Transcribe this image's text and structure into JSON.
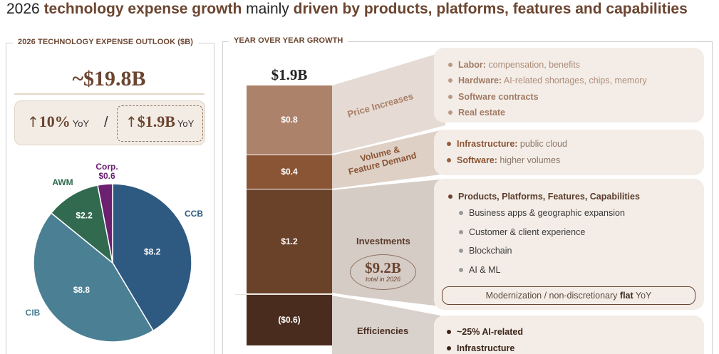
{
  "title": {
    "p1": "2026 ",
    "p2": "technology expense growth",
    "p3": " mainly ",
    "p4": "driven by products, platforms, features and capabilities"
  },
  "left_panel": {
    "label": "2026 TECHNOLOGY EXPENSE OUTLOOK ($B)",
    "total": "~$19.8B",
    "yoy_pct": "10%",
    "yoy_pct_unit": "YoY",
    "separator": "/",
    "yoy_abs": "$1.9B",
    "yoy_abs_unit": "YoY",
    "up_arrow": "↑"
  },
  "right_panel": {
    "label": "YEAR OVER YEAR GROWTH",
    "bar_total": "$1.9B",
    "bands": {
      "price": "Price Increases",
      "volume_1": "Volume &",
      "volume_2": "Feature Demand",
      "invest": "Investments",
      "eff": "Efficiencies"
    },
    "invest_oval": {
      "value": "$9.2B",
      "caption": "total in 2026"
    },
    "cards": {
      "price": [
        {
          "bold": "Labor:",
          "text": " compensation, benefits"
        },
        {
          "bold": "Hardware:",
          "text": " AI-related shortages, chips, memory"
        },
        {
          "bold": "Software contracts",
          "text": ""
        },
        {
          "bold": "Real estate",
          "text": ""
        }
      ],
      "volume": [
        {
          "bold": "Infrastructure:",
          "text": " public cloud"
        },
        {
          "bold": "Software:",
          "text": " higher volumes"
        }
      ],
      "invest": {
        "main": "Products, Platforms, Features, Capabilities",
        "subs": [
          "Business apps & geographic expansion",
          "Customer & client experience",
          "Blockchain",
          "AI & ML"
        ],
        "modern_pre": "Modernization / non-discretionary ",
        "modern_bold": "flat",
        "modern_post": " YoY"
      },
      "eff": [
        "~25% AI-related",
        "Infrastructure"
      ]
    }
  },
  "chart_data": [
    {
      "type": "pie",
      "title": "2026 TECHNOLOGY EXPENSE OUTLOOK ($B)",
      "total": 19.8,
      "slices": [
        {
          "name": "CCB",
          "value": 8.2,
          "label": "$8.2",
          "color": "#2e5a82"
        },
        {
          "name": "CIB",
          "value": 8.8,
          "label": "$8.8",
          "color": "#4a7f94"
        },
        {
          "name": "AWM",
          "value": 2.2,
          "label": "$2.2",
          "color": "#316a4f"
        },
        {
          "name": "Corp.",
          "value": 0.6,
          "label": "$0.6",
          "color": "#6b2070"
        }
      ],
      "start": "12 o'clock",
      "direction": "clockwise"
    },
    {
      "type": "bar",
      "subtype": "stacked-waterfall",
      "title": "YEAR OVER YEAR GROWTH",
      "total_label": "$1.9B",
      "total": 1.9,
      "categories": [
        "Price Increases",
        "Volume & Feature Demand",
        "Investments",
        "Efficiencies"
      ],
      "values": [
        0.8,
        0.4,
        1.2,
        -0.6
      ],
      "labels": [
        "$0.8",
        "$0.4",
        "$1.2",
        "($0.6)"
      ],
      "colors": [
        "#ad826b",
        "#8a5535",
        "#6a4229",
        "#4a2c1f"
      ]
    }
  ]
}
